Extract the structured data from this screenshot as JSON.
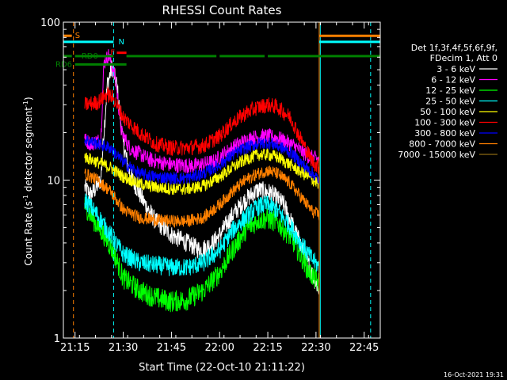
{
  "chart_data": {
    "type": "line",
    "title": "RHESSI Count Rates",
    "xlabel": "Start Time (22-Oct-10 21:11:22)",
    "ylabel_main": "Count Rate (s",
    "ylabel_sup1": "-1",
    "ylabel_mid": " detector segment",
    "ylabel_sup2": "-1",
    "ylabel_end": ")",
    "y_scale": "log",
    "xlim": [
      "21:11:22",
      "22:50:00"
    ],
    "ylim": [
      1,
      100
    ],
    "x_ticks": [
      {
        "label": "21:15",
        "t": "21:15"
      },
      {
        "label": "21:30",
        "t": "21:30"
      },
      {
        "label": "21:45",
        "t": "21:45"
      },
      {
        "label": "22:00",
        "t": "22:00"
      },
      {
        "label": "22:15",
        "t": "22:15"
      },
      {
        "label": "22:30",
        "t": "22:30"
      },
      {
        "label": "22:45",
        "t": "22:45"
      }
    ],
    "y_ticks": [
      {
        "label": "1",
        "value": 1
      },
      {
        "label": "10",
        "value": 10
      },
      {
        "label": "100",
        "value": 100
      }
    ],
    "legend_header": [
      "Det 1f,3f,4f,5f,6f,9f,",
      "FDecim 1, Att 0"
    ],
    "legend_placement": "right",
    "timestamp": "16-Oct-2021 19:31",
    "series": [
      {
        "name": "3 - 6 keV",
        "color": "#ffffff",
        "noise": 0.06,
        "points": [
          [
            "21:18:00",
            9
          ],
          [
            "21:20:00",
            8
          ],
          [
            "21:23:00",
            10
          ],
          [
            "21:25:00",
            40
          ],
          [
            "21:26:30",
            52
          ],
          [
            "21:28:00",
            40
          ],
          [
            "21:30:00",
            17
          ],
          [
            "21:32:00",
            11
          ],
          [
            "21:36:00",
            7.5
          ],
          [
            "21:40:00",
            5.5
          ],
          [
            "21:45:00",
            4.5
          ],
          [
            "21:50:00",
            4
          ],
          [
            "21:54:00",
            3.6
          ],
          [
            "21:58:00",
            4
          ],
          [
            "22:00:00",
            4.5
          ],
          [
            "22:04:00",
            6
          ],
          [
            "22:08:00",
            7.5
          ],
          [
            "22:12:00",
            8.7
          ],
          [
            "22:16:00",
            8.3
          ],
          [
            "22:20:00",
            7
          ],
          [
            "22:24:00",
            4.5
          ],
          [
            "22:28:00",
            2.8
          ],
          [
            "22:31:00",
            2.0
          ]
        ]
      },
      {
        "name": "6 - 12 keV",
        "color": "#ff00ff",
        "noise": 0.05,
        "points": [
          [
            "21:18:00",
            18
          ],
          [
            "21:20:00",
            17
          ],
          [
            "21:23:00",
            18
          ],
          [
            "21:24:00",
            55
          ],
          [
            "21:25:30",
            62
          ],
          [
            "21:27:30",
            45
          ],
          [
            "21:29:30",
            20
          ],
          [
            "21:32:00",
            16
          ],
          [
            "21:38:00",
            13.5
          ],
          [
            "21:45:00",
            12.5
          ],
          [
            "21:52:00",
            12.3
          ],
          [
            "21:58:00",
            13
          ],
          [
            "22:02:00",
            15
          ],
          [
            "22:06:00",
            17
          ],
          [
            "22:10:00",
            18.5
          ],
          [
            "22:14:00",
            19
          ],
          [
            "22:18:00",
            18.5
          ],
          [
            "22:22:00",
            17
          ],
          [
            "22:25:00",
            15.5
          ],
          [
            "22:28:00",
            14
          ],
          [
            "22:31:00",
            13.5
          ]
        ]
      },
      {
        "name": "12 - 25 keV",
        "color": "#00ff00",
        "noise": 0.07,
        "points": [
          [
            "21:18:00",
            7
          ],
          [
            "21:21:00",
            5.5
          ],
          [
            "21:24:00",
            4.5
          ],
          [
            "21:27:00",
            3.5
          ],
          [
            "21:30:00",
            2.4
          ],
          [
            "21:35:00",
            2
          ],
          [
            "21:40:00",
            1.8
          ],
          [
            "21:45:00",
            1.7
          ],
          [
            "21:50:00",
            1.75
          ],
          [
            "21:55:00",
            2
          ],
          [
            "22:00:00",
            2.6
          ],
          [
            "22:04:00",
            3.6
          ],
          [
            "22:08:00",
            4.8
          ],
          [
            "22:12:00",
            5.6
          ],
          [
            "22:15:00",
            5.7
          ],
          [
            "22:18:00",
            5.4
          ],
          [
            "22:22:00",
            4.4
          ],
          [
            "22:25:00",
            3.4
          ],
          [
            "22:28:00",
            2.6
          ],
          [
            "22:31:00",
            2.2
          ]
        ]
      },
      {
        "name": "25 - 50 keV",
        "color": "#00ffff",
        "noise": 0.06,
        "points": [
          [
            "21:18:00",
            7.5
          ],
          [
            "21:22:00",
            6
          ],
          [
            "21:26:00",
            4.5
          ],
          [
            "21:30:00",
            3.4
          ],
          [
            "21:35:00",
            3
          ],
          [
            "21:40:00",
            2.9
          ],
          [
            "21:45:00",
            2.8
          ],
          [
            "21:50:00",
            2.8
          ],
          [
            "21:55:00",
            3
          ],
          [
            "22:00:00",
            3.6
          ],
          [
            "22:04:00",
            4.8
          ],
          [
            "22:08:00",
            5.8
          ],
          [
            "22:12:00",
            6.8
          ],
          [
            "22:15:00",
            7
          ],
          [
            "22:18:00",
            6.4
          ],
          [
            "22:22:00",
            5.1
          ],
          [
            "22:25:00",
            4.1
          ],
          [
            "22:28:00",
            3.3
          ],
          [
            "22:31:00",
            2.8
          ]
        ]
      },
      {
        "name": "50 - 100 keV",
        "color": "#ffff00",
        "noise": 0.04,
        "points": [
          [
            "21:18:00",
            14
          ],
          [
            "21:22:00",
            13
          ],
          [
            "21:26:00",
            12
          ],
          [
            "21:30:00",
            10.5
          ],
          [
            "21:35:00",
            9.5
          ],
          [
            "21:40:00",
            9
          ],
          [
            "21:45:00",
            8.8
          ],
          [
            "21:50:00",
            8.8
          ],
          [
            "21:55:00",
            9.2
          ],
          [
            "22:00:00",
            10.5
          ],
          [
            "22:04:00",
            12
          ],
          [
            "22:08:00",
            13.5
          ],
          [
            "22:12:00",
            14.5
          ],
          [
            "22:15:00",
            14.5
          ],
          [
            "22:18:00",
            14
          ],
          [
            "22:22:00",
            12.5
          ],
          [
            "22:26:00",
            11
          ],
          [
            "22:29:00",
            10
          ],
          [
            "22:31:00",
            9.5
          ]
        ]
      },
      {
        "name": "100 - 300 keV",
        "color": "#ff0000",
        "noise": 0.05,
        "points": [
          [
            "21:18:00",
            30
          ],
          [
            "21:22:00",
            31
          ],
          [
            "21:25:00",
            35
          ],
          [
            "21:27:00",
            33
          ],
          [
            "21:30:00",
            25
          ],
          [
            "21:35:00",
            20
          ],
          [
            "21:40:00",
            17
          ],
          [
            "21:45:00",
            16
          ],
          [
            "21:50:00",
            16
          ],
          [
            "21:55:00",
            16.5
          ],
          [
            "22:00:00",
            19
          ],
          [
            "22:04:00",
            23
          ],
          [
            "22:08:00",
            26.5
          ],
          [
            "22:12:00",
            29
          ],
          [
            "22:15:00",
            30
          ],
          [
            "22:18:00",
            29
          ],
          [
            "22:22:00",
            25
          ],
          [
            "22:26:00",
            17
          ],
          [
            "22:29:00",
            13
          ],
          [
            "22:31:00",
            12
          ]
        ]
      },
      {
        "name": "300 - 800 keV",
        "color": "#0000ff",
        "noise": 0.04,
        "points": [
          [
            "21:18:00",
            18
          ],
          [
            "21:22:00",
            17
          ],
          [
            "21:26:00",
            16
          ],
          [
            "21:30:00",
            13
          ],
          [
            "21:35:00",
            11
          ],
          [
            "21:40:00",
            10.5
          ],
          [
            "21:45:00",
            10.3
          ],
          [
            "21:50:00",
            10.3
          ],
          [
            "21:55:00",
            11
          ],
          [
            "22:00:00",
            12.5
          ],
          [
            "22:04:00",
            14.5
          ],
          [
            "22:08:00",
            16
          ],
          [
            "22:12:00",
            17
          ],
          [
            "22:15:00",
            17.3
          ],
          [
            "22:18:00",
            16.5
          ],
          [
            "22:22:00",
            15
          ],
          [
            "22:26:00",
            12.5
          ],
          [
            "22:29:00",
            11
          ],
          [
            "22:31:00",
            10
          ]
        ]
      },
      {
        "name": "800 - 7000 keV",
        "color": "#ff8000",
        "noise": 0.04,
        "points": [
          [
            "21:18:00",
            11
          ],
          [
            "21:22:00",
            10
          ],
          [
            "21:26:00",
            8.5
          ],
          [
            "21:30:00",
            6.5
          ],
          [
            "21:35:00",
            5.8
          ],
          [
            "21:40:00",
            5.6
          ],
          [
            "21:45:00",
            5.5
          ],
          [
            "21:50:00",
            5.5
          ],
          [
            "21:55:00",
            5.8
          ],
          [
            "22:00:00",
            7
          ],
          [
            "22:04:00",
            8.5
          ],
          [
            "22:08:00",
            10
          ],
          [
            "22:12:00",
            11
          ],
          [
            "22:15:00",
            11.5
          ],
          [
            "22:18:00",
            11
          ],
          [
            "22:22:00",
            9.5
          ],
          [
            "22:26:00",
            7.5
          ],
          [
            "22:29:00",
            6.3
          ],
          [
            "22:31:00",
            6
          ]
        ]
      },
      {
        "name": "7000 - 15000 keV",
        "color": "#8b6914",
        "noise": 0.0,
        "points": []
      }
    ],
    "attenuator_bars": [
      {
        "label": "S",
        "color": "#ff8000",
        "y": 82,
        "segments": [
          [
            "21:11:22",
            "21:14:00"
          ],
          [
            "22:31:00",
            "22:50:00"
          ]
        ]
      },
      {
        "label": "N",
        "color": "#00ffff",
        "y": 75,
        "segments": [
          [
            "21:11:22",
            "21:27:00"
          ],
          [
            "22:31:00",
            "22:50:00"
          ]
        ]
      },
      {
        "label": "F",
        "color": "#ff0000",
        "y": 64,
        "segments": [
          [
            "21:28:00",
            "21:31:00"
          ]
        ]
      },
      {
        "label": "RD0",
        "color": "#008000",
        "y": 61,
        "segments": [
          [
            "21:11:22",
            "21:14:00"
          ],
          [
            "21:15:00",
            "21:27:00"
          ],
          [
            "21:31:00",
            "21:59:00"
          ],
          [
            "22:00:00",
            "22:14:00"
          ],
          [
            "22:15:00",
            "22:50:00"
          ]
        ]
      },
      {
        "label": "RD6",
        "color": "#008000",
        "y": 54,
        "segments": [
          [
            "21:15:00",
            "21:31:00"
          ]
        ]
      }
    ],
    "vertical_lines": [
      {
        "t": "21:14:30",
        "color": "#ff8000",
        "style": "dashed"
      },
      {
        "t": "21:27:00",
        "color": "#00ffff",
        "style": "dashed"
      },
      {
        "t": "22:31:00",
        "color": "#ff8000",
        "style": "solid"
      },
      {
        "t": "22:31:20",
        "color": "#00ffff",
        "style": "solid"
      },
      {
        "t": "22:47:00",
        "color": "#00ffff",
        "style": "dashed"
      }
    ]
  }
}
